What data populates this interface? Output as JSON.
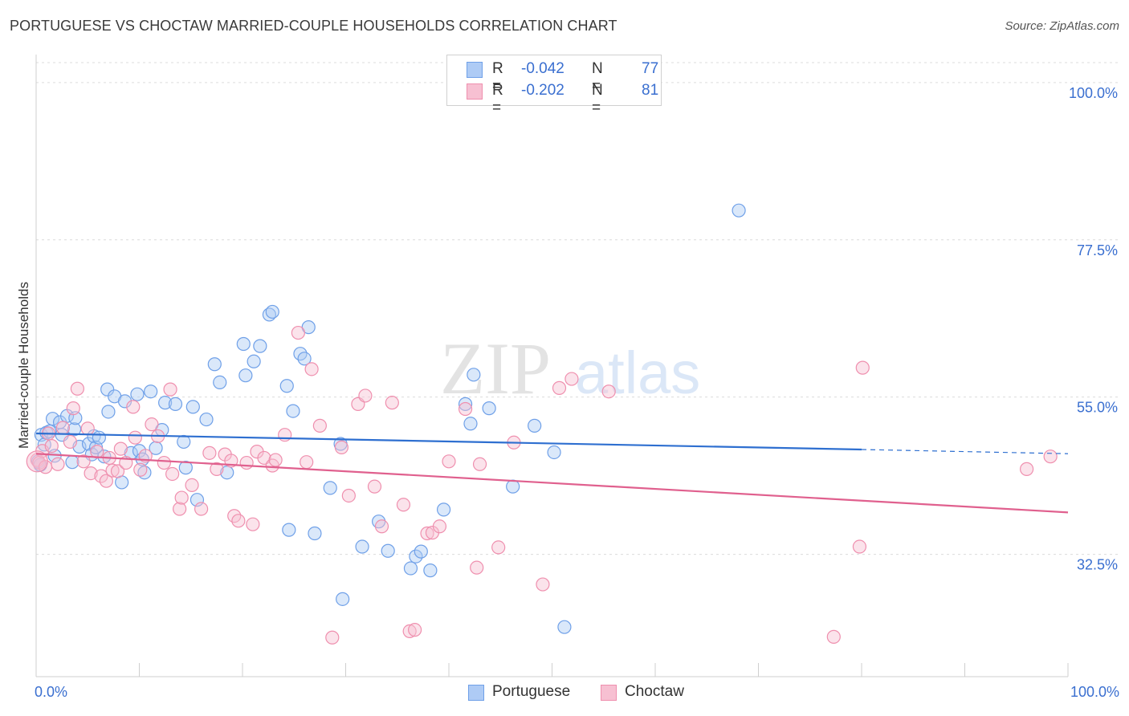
{
  "title": "PORTUGUESE VS CHOCTAW MARRIED-COUPLE HOUSEHOLDS CORRELATION CHART",
  "source": "Source: ZipAtlas.com",
  "watermark": {
    "zip": "ZIP",
    "atlas": "atlas"
  },
  "legend": {
    "r_label": "R =",
    "n_label": "N =",
    "items": [
      {
        "name": "Portuguese",
        "r": "-0.042",
        "n": "77",
        "color": "#6fa0e8",
        "fill": "#aecbf5",
        "line_color": "#2e6fd0"
      },
      {
        "name": "Choctaw",
        "r": "-0.202",
        "n": "81",
        "color": "#ef8fae",
        "fill": "#f7c0d2",
        "line_color": "#e0608e"
      }
    ]
  },
  "chart_data": {
    "type": "scatter",
    "title": "PORTUGUESE VS CHOCTAW MARRIED-COUPLE HOUSEHOLDS CORRELATION CHART",
    "xlabel": "",
    "ylabel": "Married-couple Households",
    "xlim": [
      0,
      100
    ],
    "ylim": [
      15,
      104
    ],
    "x_tick_labels": [
      "0.0%",
      "100.0%"
    ],
    "y_ticks": [
      32.5,
      55.0,
      77.5,
      100.0
    ],
    "y_tick_labels": [
      "32.5%",
      "55.0%",
      "77.5%",
      "100.0%"
    ],
    "grid": true,
    "series": [
      {
        "name": "Portuguese",
        "trend": {
          "x0": 0,
          "y0": 49.8,
          "x1": 80,
          "y1": 47.5,
          "dash_to": 100,
          "dash_y": 46.9
        },
        "points": [
          [
            0.2,
            45.8
          ],
          [
            0.4,
            45.3
          ],
          [
            0.5,
            49.6
          ],
          [
            0.8,
            48.2
          ],
          [
            1.0,
            49.9
          ],
          [
            1.3,
            50.1
          ],
          [
            1.6,
            51.9
          ],
          [
            1.8,
            46.6
          ],
          [
            2.3,
            51.4
          ],
          [
            2.5,
            49.6
          ],
          [
            3.0,
            52.3
          ],
          [
            3.5,
            45.7
          ],
          [
            3.7,
            50.4
          ],
          [
            3.8,
            52.0
          ],
          [
            4.2,
            47.9
          ],
          [
            5.1,
            48.3
          ],
          [
            5.4,
            46.8
          ],
          [
            5.6,
            49.4
          ],
          [
            5.8,
            47.8
          ],
          [
            6.1,
            49.2
          ],
          [
            6.6,
            46.5
          ],
          [
            6.9,
            56.1
          ],
          [
            7.0,
            52.9
          ],
          [
            7.6,
            55.1
          ],
          [
            8.3,
            42.8
          ],
          [
            8.6,
            54.4
          ],
          [
            9.2,
            47.0
          ],
          [
            9.8,
            55.4
          ],
          [
            10.0,
            47.3
          ],
          [
            10.3,
            46.1
          ],
          [
            10.5,
            44.2
          ],
          [
            11.1,
            55.8
          ],
          [
            11.6,
            47.7
          ],
          [
            12.2,
            50.3
          ],
          [
            12.5,
            54.2
          ],
          [
            13.5,
            54.0
          ],
          [
            14.3,
            48.6
          ],
          [
            14.5,
            44.9
          ],
          [
            15.2,
            53.6
          ],
          [
            15.6,
            40.3
          ],
          [
            16.5,
            51.8
          ],
          [
            17.3,
            59.7
          ],
          [
            17.8,
            57.1
          ],
          [
            18.5,
            44.2
          ],
          [
            20.1,
            62.6
          ],
          [
            20.3,
            58.1
          ],
          [
            21.1,
            60.1
          ],
          [
            21.7,
            62.3
          ],
          [
            22.6,
            66.8
          ],
          [
            22.9,
            67.2
          ],
          [
            24.3,
            56.6
          ],
          [
            24.5,
            36.0
          ],
          [
            24.9,
            53.0
          ],
          [
            25.6,
            61.2
          ],
          [
            26.0,
            60.5
          ],
          [
            26.4,
            65.0
          ],
          [
            27.0,
            35.5
          ],
          [
            28.5,
            42.0
          ],
          [
            29.5,
            48.3
          ],
          [
            29.7,
            26.1
          ],
          [
            31.6,
            33.6
          ],
          [
            33.2,
            37.2
          ],
          [
            34.1,
            33.0
          ],
          [
            36.3,
            30.5
          ],
          [
            36.8,
            32.2
          ],
          [
            37.3,
            32.9
          ],
          [
            38.2,
            30.2
          ],
          [
            39.5,
            38.9
          ],
          [
            41.6,
            54.0
          ],
          [
            42.1,
            51.2
          ],
          [
            42.4,
            58.2
          ],
          [
            43.9,
            53.4
          ],
          [
            46.2,
            42.2
          ],
          [
            48.3,
            50.9
          ],
          [
            50.2,
            47.1
          ],
          [
            51.2,
            22.1
          ],
          [
            68.1,
            81.7
          ]
        ]
      },
      {
        "name": "Choctaw",
        "trend": {
          "x0": 0,
          "y0": 46.9,
          "x1": 100,
          "y1": 38.5
        },
        "points": [
          [
            0.1,
            46.0
          ],
          [
            0.3,
            45.6
          ],
          [
            0.6,
            47.3
          ],
          [
            0.9,
            45.0
          ],
          [
            1.2,
            49.8
          ],
          [
            1.5,
            48.0
          ],
          [
            2.1,
            45.4
          ],
          [
            2.6,
            50.6
          ],
          [
            3.3,
            48.6
          ],
          [
            3.6,
            53.4
          ],
          [
            4.0,
            56.2
          ],
          [
            4.6,
            45.8
          ],
          [
            5.0,
            50.5
          ],
          [
            5.3,
            44.1
          ],
          [
            5.9,
            47.2
          ],
          [
            6.3,
            43.7
          ],
          [
            6.8,
            43.0
          ],
          [
            7.1,
            46.3
          ],
          [
            7.4,
            44.5
          ],
          [
            7.9,
            44.4
          ],
          [
            8.2,
            47.6
          ],
          [
            8.7,
            45.6
          ],
          [
            9.4,
            53.6
          ],
          [
            9.6,
            49.2
          ],
          [
            10.1,
            44.6
          ],
          [
            10.6,
            46.6
          ],
          [
            11.2,
            51.1
          ],
          [
            11.8,
            49.4
          ],
          [
            12.4,
            45.6
          ],
          [
            13.0,
            56.1
          ],
          [
            13.2,
            44.0
          ],
          [
            13.9,
            39.0
          ],
          [
            14.1,
            40.6
          ],
          [
            15.1,
            42.4
          ],
          [
            16.0,
            39.0
          ],
          [
            16.8,
            47.0
          ],
          [
            17.5,
            44.7
          ],
          [
            18.3,
            46.8
          ],
          [
            18.9,
            45.9
          ],
          [
            19.2,
            38.0
          ],
          [
            19.6,
            37.3
          ],
          [
            20.4,
            45.6
          ],
          [
            21.0,
            36.8
          ],
          [
            21.4,
            47.2
          ],
          [
            22.1,
            46.3
          ],
          [
            22.9,
            45.2
          ],
          [
            23.2,
            46.0
          ],
          [
            24.1,
            49.6
          ],
          [
            25.4,
            64.2
          ],
          [
            26.2,
            45.7
          ],
          [
            26.7,
            59.0
          ],
          [
            27.5,
            50.9
          ],
          [
            28.7,
            20.6
          ],
          [
            29.6,
            47.8
          ],
          [
            30.3,
            40.9
          ],
          [
            31.2,
            54.0
          ],
          [
            31.9,
            55.2
          ],
          [
            32.8,
            42.2
          ],
          [
            33.5,
            36.5
          ],
          [
            34.5,
            54.2
          ],
          [
            35.6,
            39.6
          ],
          [
            36.2,
            21.5
          ],
          [
            36.7,
            21.7
          ],
          [
            37.9,
            35.5
          ],
          [
            38.4,
            35.6
          ],
          [
            39.1,
            36.5
          ],
          [
            40.0,
            45.8
          ],
          [
            41.6,
            53.3
          ],
          [
            42.7,
            30.6
          ],
          [
            43.0,
            45.4
          ],
          [
            44.8,
            33.5
          ],
          [
            46.3,
            48.5
          ],
          [
            49.1,
            28.2
          ],
          [
            50.7,
            56.3
          ],
          [
            51.9,
            57.6
          ],
          [
            55.5,
            55.8
          ],
          [
            77.3,
            20.7
          ],
          [
            79.8,
            33.6
          ],
          [
            80.1,
            59.2
          ],
          [
            96.0,
            44.7
          ],
          [
            98.3,
            46.5
          ]
        ]
      }
    ]
  }
}
